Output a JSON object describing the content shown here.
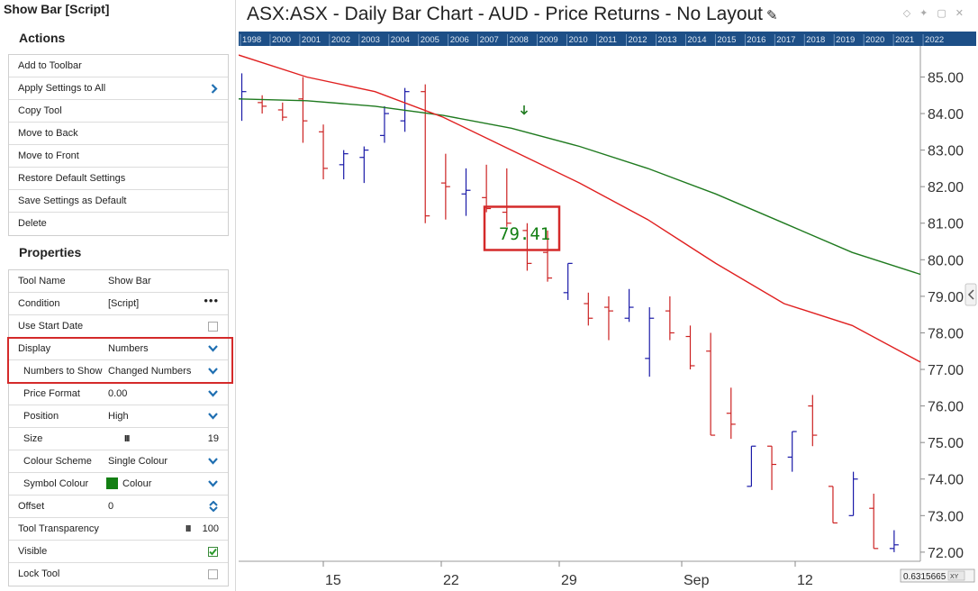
{
  "panel": {
    "title": "Show Bar [Script]",
    "actions_title": "Actions",
    "actions": [
      {
        "label": "Add to Toolbar"
      },
      {
        "label": "Apply Settings to All",
        "chevron": true
      },
      {
        "label": "Copy Tool"
      },
      {
        "label": "Move to Back"
      },
      {
        "label": "Move to Front"
      },
      {
        "label": "Restore Default Settings"
      },
      {
        "label": "Save Settings as Default"
      },
      {
        "label": "Delete"
      }
    ],
    "properties_title": "Properties",
    "properties": {
      "tool_name": {
        "label": "Tool Name",
        "value": "Show Bar"
      },
      "condition": {
        "label": "Condition",
        "value": "[Script]"
      },
      "use_start_date": {
        "label": "Use Start Date",
        "checked": false
      },
      "display": {
        "label": "Display",
        "value": "Numbers"
      },
      "numbers_to_show": {
        "label": "Numbers to Show",
        "value": "Changed Numbers"
      },
      "price_format": {
        "label": "Price Format",
        "value": "0.00"
      },
      "position": {
        "label": "Position",
        "value": "High"
      },
      "size": {
        "label": "Size",
        "value": "19"
      },
      "colour_scheme": {
        "label": "Colour Scheme",
        "value": "Single Colour"
      },
      "symbol_colour": {
        "label": "Symbol Colour",
        "value": "Colour",
        "color": "#137f13"
      },
      "offset": {
        "label": "Offset",
        "value": "0"
      },
      "tool_transparency": {
        "label": "Tool Transparency",
        "value": "100"
      },
      "visible": {
        "label": "Visible",
        "checked": true
      },
      "lock_tool": {
        "label": "Lock Tool",
        "checked": false
      }
    }
  },
  "chart": {
    "title": "ASX:ASX - Daily Bar Chart - AUD - Price Returns - No Layout",
    "years": [
      "1998",
      "2000",
      "2001",
      "2002",
      "2003",
      "2004",
      "2005",
      "2006",
      "2007",
      "2008",
      "2009",
      "2010",
      "2011",
      "2012",
      "2013",
      "2014",
      "2015",
      "2016",
      "2017",
      "2018",
      "2019",
      "2020",
      "2021",
      "2022"
    ],
    "x_labels": [
      "15",
      "22",
      "29",
      "Sep",
      "12"
    ],
    "y_ticks": [
      "85.00",
      "84.00",
      "83.00",
      "82.00",
      "81.00",
      "80.00",
      "79.00",
      "78.00",
      "77.00",
      "76.00",
      "75.00",
      "74.00",
      "73.00",
      "72.00"
    ],
    "annotation": "79.41",
    "readout": "0.6315665",
    "readout_mode": "XY",
    "colors": {
      "up": "#1a1aa8",
      "down": "#cc2222",
      "ma_long": "#1f7a1f",
      "ma_short": "#e02020",
      "annotation": "#137f13",
      "highlight": "#d42a2a",
      "year_bar": "#1d4f87"
    }
  },
  "chart_data": {
    "type": "bar",
    "ylim": [
      71.8,
      85.8
    ],
    "bars": [
      {
        "h": 85.1,
        "l": 83.8,
        "o": 84.4,
        "c": 84.6,
        "up": true
      },
      {
        "h": 84.5,
        "l": 84.0,
        "o": 84.3,
        "c": 84.2,
        "up": false
      },
      {
        "h": 84.3,
        "l": 83.8,
        "o": 84.1,
        "c": 83.9,
        "up": false
      },
      {
        "h": 85.0,
        "l": 83.2,
        "o": 84.4,
        "c": 83.8,
        "up": false
      },
      {
        "h": 83.7,
        "l": 82.2,
        "o": 83.5,
        "c": 82.5,
        "up": false
      },
      {
        "h": 83.0,
        "l": 82.2,
        "o": 82.6,
        "c": 82.9,
        "up": true
      },
      {
        "h": 83.1,
        "l": 82.1,
        "o": 82.8,
        "c": 83.0,
        "up": true
      },
      {
        "h": 84.2,
        "l": 83.2,
        "o": 83.4,
        "c": 84.0,
        "up": true
      },
      {
        "h": 84.7,
        "l": 83.5,
        "o": 83.8,
        "c": 84.6,
        "up": true
      },
      {
        "h": 84.8,
        "l": 81.0,
        "o": 84.6,
        "c": 81.2,
        "up": false
      },
      {
        "h": 82.9,
        "l": 81.1,
        "o": 82.1,
        "c": 82.0,
        "up": false
      },
      {
        "h": 82.5,
        "l": 81.2,
        "o": 81.8,
        "c": 81.9,
        "up": true
      },
      {
        "h": 82.6,
        "l": 81.3,
        "o": 81.7,
        "c": 81.4,
        "up": false
      },
      {
        "h": 82.5,
        "l": 80.9,
        "o": 81.3,
        "c": 81.0,
        "up": false
      },
      {
        "h": 81.0,
        "l": 79.7,
        "o": 80.8,
        "c": 79.9,
        "up": false
      },
      {
        "h": 80.8,
        "l": 79.4,
        "o": 80.2,
        "c": 79.5,
        "up": false
      },
      {
        "h": 79.9,
        "l": 78.9,
        "o": 79.1,
        "c": 79.9,
        "up": true
      },
      {
        "h": 79.1,
        "l": 78.2,
        "o": 78.8,
        "c": 78.4,
        "up": false
      },
      {
        "h": 79.0,
        "l": 77.8,
        "o": 78.7,
        "c": 78.6,
        "up": false
      },
      {
        "h": 79.2,
        "l": 78.3,
        "o": 78.4,
        "c": 78.7,
        "up": true
      },
      {
        "h": 78.7,
        "l": 76.8,
        "o": 77.3,
        "c": 78.4,
        "up": true
      },
      {
        "h": 79.0,
        "l": 77.8,
        "o": 78.6,
        "c": 78.0,
        "up": false
      },
      {
        "h": 78.2,
        "l": 77.0,
        "o": 77.9,
        "c": 77.1,
        "up": false
      },
      {
        "h": 78.0,
        "l": 75.2,
        "o": 77.5,
        "c": 75.2,
        "up": false
      },
      {
        "h": 76.5,
        "l": 75.1,
        "o": 75.8,
        "c": 75.5,
        "up": false
      },
      {
        "h": 74.9,
        "l": 73.8,
        "o": 73.8,
        "c": 74.9,
        "up": true
      },
      {
        "h": 74.9,
        "l": 73.7,
        "o": 74.9,
        "c": 74.4,
        "up": false
      },
      {
        "h": 75.3,
        "l": 74.2,
        "o": 74.6,
        "c": 75.3,
        "up": true
      },
      {
        "h": 76.3,
        "l": 74.9,
        "o": 76.0,
        "c": 75.2,
        "up": false
      },
      {
        "h": 73.8,
        "l": 72.8,
        "o": 73.8,
        "c": 72.8,
        "up": false
      },
      {
        "h": 74.2,
        "l": 73.0,
        "o": 73.0,
        "c": 74.0,
        "up": true
      },
      {
        "h": 73.6,
        "l": 72.1,
        "o": 73.2,
        "c": 72.1,
        "up": false
      },
      {
        "h": 72.6,
        "l": 72.0,
        "o": 72.1,
        "c": 72.2,
        "up": true
      }
    ],
    "ma_long": [
      84.4,
      84.35,
      84.2,
      83.95,
      83.6,
      83.1,
      82.5,
      81.8,
      81.0,
      80.2,
      79.6
    ],
    "ma_short": [
      85.6,
      85.0,
      84.6,
      83.9,
      83.0,
      82.1,
      81.1,
      79.9,
      78.8,
      78.2,
      77.2
    ]
  }
}
